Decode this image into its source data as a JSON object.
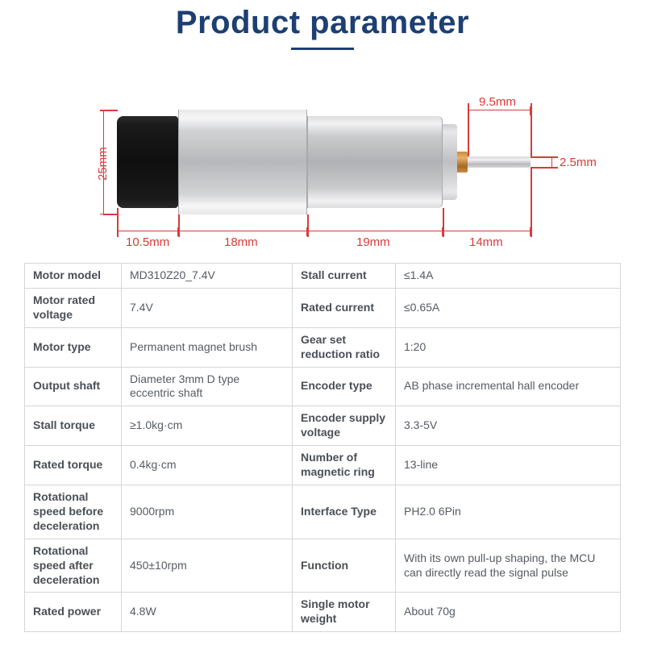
{
  "title": "Product parameter",
  "dimensions": {
    "height_overall": "25mm",
    "seg1": "10.5mm",
    "seg2": "18mm",
    "seg3": "19mm",
    "seg4": "14mm",
    "shaft_len": "9.5mm",
    "shaft_dia": "2.5mm"
  },
  "diagram_colors": {
    "dim_line": "#d93a3a",
    "title_color": "#1d3f72",
    "encoder": "#1a1a1a",
    "metal_light": "#e8e8e9",
    "metal_dark": "#b7b8bb",
    "brass": "#c98b3e"
  },
  "specs": [
    {
      "l1": "Motor model",
      "v1": "MD310Z20_7.4V",
      "l2": "Stall current",
      "v2": "≤1.4A"
    },
    {
      "l1": "Motor rated voltage",
      "v1": "7.4V",
      "l2": "Rated current",
      "v2": "≤0.65A"
    },
    {
      "l1": "Motor type",
      "v1": "Permanent magnet brush",
      "l2": "Gear set reduction ratio",
      "v2": "1:20"
    },
    {
      "l1": "Output shaft",
      "v1": "Diameter 3mm D type eccentric shaft",
      "l2": "Encoder type",
      "v2": "AB phase incremental hall encoder"
    },
    {
      "l1": "Stall torque",
      "v1": "≥1.0kg·cm",
      "l2": "Encoder supply voltage",
      "v2": "3.3-5V"
    },
    {
      "l1": "Rated torque",
      "v1": "0.4kg·cm",
      "l2": "Number of magnetic ring",
      "v2": "13-line"
    },
    {
      "l1": "Rotational speed before deceleration",
      "v1": "9000rpm",
      "l2": "Interface Type",
      "v2": "PH2.0 6Pin"
    },
    {
      "l1": "Rotational speed after deceleration",
      "v1": "450±10rpm",
      "l2": "Function",
      "v2": "With its own pull-up shaping, the MCU can directly read the signal pulse"
    },
    {
      "l1": "Rated power",
      "v1": "4.8W",
      "l2": "Single motor weight",
      "v2": "About 70g"
    }
  ]
}
